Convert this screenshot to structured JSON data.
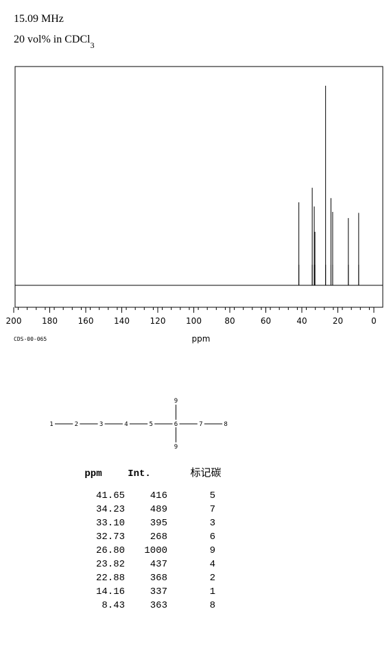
{
  "header": {
    "frequency": "15.09 MHz",
    "solvent": "20 vol% in CDCl",
    "solvent_subscript": "3"
  },
  "chart_data": {
    "type": "spectrum",
    "xlabel": "ppm",
    "code": "CDS-00-065",
    "x": [
      41.65,
      34.23,
      33.1,
      32.73,
      26.8,
      23.82,
      22.88,
      14.16,
      8.43
    ],
    "values": [
      416,
      489,
      395,
      268,
      1000,
      437,
      368,
      337,
      363
    ],
    "xlim": [
      200,
      0
    ],
    "xticks": [
      200,
      180,
      160,
      140,
      120,
      100,
      80,
      60,
      40,
      20,
      0
    ],
    "color": "#000000"
  },
  "structure": {
    "chain": [
      "1",
      "2",
      "3",
      "4",
      "5",
      "6",
      "7",
      "8"
    ],
    "top": "9",
    "bottom": "9"
  },
  "table": {
    "columns": [
      "ppm",
      "Int.",
      "标记碳"
    ],
    "rows": [
      [
        "41.65",
        "416",
        "5"
      ],
      [
        "34.23",
        "489",
        "7"
      ],
      [
        "33.10",
        "395",
        "3"
      ],
      [
        "32.73",
        "268",
        "6"
      ],
      [
        "26.80",
        "1000",
        "9"
      ],
      [
        "23.82",
        "437",
        "4"
      ],
      [
        "22.88",
        "368",
        "2"
      ],
      [
        "14.16",
        "337",
        "1"
      ],
      [
        "8.43",
        "363",
        "8"
      ]
    ]
  }
}
